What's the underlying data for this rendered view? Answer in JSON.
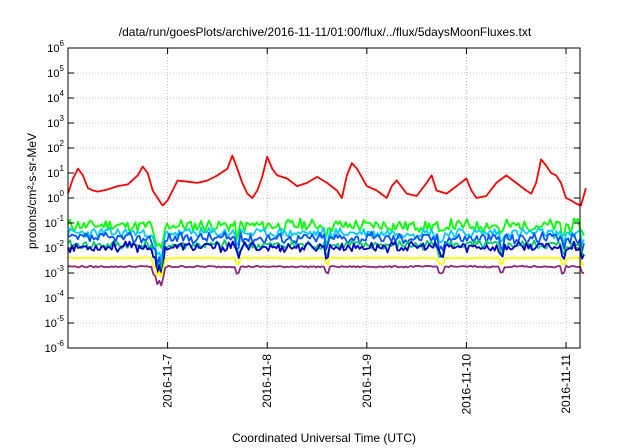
{
  "chart_data": {
    "type": "line",
    "title": "/data/run/goesPlots/archive/2016-11-11/01:00/flux/../flux/5daysMoonFluxes.txt",
    "xlabel": "Coordinated Universal Time (UTC)",
    "ylabel": "protons/cm²-s-sr-MeV",
    "y_scale": "log",
    "ylim": [
      1e-06,
      1000000.0
    ],
    "x_range_days": [
      "2016-11-06",
      "2016-11-11"
    ],
    "x_ticks": [
      {
        "value": "2016-11-07",
        "label": "2016-11-7"
      },
      {
        "value": "2016-11-08",
        "label": "2016-11-8"
      },
      {
        "value": "2016-11-09",
        "label": "2016-11-9"
      },
      {
        "value": "2016-11-10",
        "label": "2016-11-10"
      },
      {
        "value": "2016-11-11",
        "label": "2016-11-11"
      }
    ],
    "y_ticks": [
      {
        "exp": -6,
        "label": "10",
        "sup": "-6"
      },
      {
        "exp": -5,
        "label": "10",
        "sup": "-5"
      },
      {
        "exp": -4,
        "label": "10",
        "sup": "-4"
      },
      {
        "exp": -3,
        "label": "10",
        "sup": "-3"
      },
      {
        "exp": -2,
        "label": "10",
        "sup": "-2"
      },
      {
        "exp": -1,
        "label": "10",
        "sup": "-1"
      },
      {
        "exp": 0,
        "label": "10",
        "sup": "0"
      },
      {
        "exp": 1,
        "label": "10",
        "sup": "1"
      },
      {
        "exp": 2,
        "label": "10",
        "sup": "2"
      },
      {
        "exp": 3,
        "label": "10",
        "sup": "3"
      },
      {
        "exp": 4,
        "label": "10",
        "sup": "4"
      },
      {
        "exp": 5,
        "label": "10",
        "sup": "5"
      },
      {
        "exp": 6,
        "label": "10",
        "sup": "6"
      }
    ],
    "grid": true,
    "legend": "none",
    "series": [
      {
        "color": "#ff0000",
        "x_days": [
          0,
          0.05,
          0.1,
          0.15,
          0.2,
          0.25,
          0.3,
          0.4,
          0.5,
          0.6,
          0.7,
          0.75,
          0.8,
          0.85,
          0.9,
          0.95,
          1.0,
          1.05,
          1.1,
          1.2,
          1.3,
          1.4,
          1.5,
          1.6,
          1.65,
          1.7,
          1.75,
          1.8,
          1.85,
          1.9,
          1.95,
          2.0,
          2.05,
          2.1,
          2.15,
          2.2,
          2.3,
          2.4,
          2.5,
          2.6,
          2.7,
          2.75,
          2.8,
          2.85,
          2.9,
          3.0,
          3.1,
          3.2,
          3.25,
          3.3,
          3.4,
          3.5,
          3.6,
          3.65,
          3.7,
          3.8,
          3.9,
          4.0,
          4.05,
          4.1,
          4.2,
          4.3,
          4.4,
          4.5,
          4.6,
          4.65,
          4.7,
          4.75,
          4.8,
          4.85,
          4.9,
          4.95,
          5.0,
          5.05,
          5.1,
          5.15,
          5.2
        ],
        "values": [
          1.5,
          6,
          15,
          8,
          2.5,
          2,
          1.8,
          2.2,
          3,
          3.5,
          8,
          18,
          10,
          2,
          1,
          0.5,
          0.8,
          2,
          5,
          4.5,
          4,
          5,
          8,
          15,
          50,
          15,
          4,
          1.5,
          1,
          2,
          7,
          45,
          15,
          8,
          7,
          6,
          3,
          4,
          7,
          4,
          2,
          1,
          8,
          25,
          15,
          3,
          2,
          1,
          3,
          5,
          1.5,
          1.2,
          4,
          8,
          2,
          1.5,
          3,
          6,
          2,
          1,
          1.2,
          4,
          8,
          4,
          2,
          1.5,
          4,
          35,
          20,
          10,
          8,
          4,
          1,
          0.8,
          0.6,
          0.5,
          2.5
        ]
      },
      {
        "color": "#00ff00",
        "base": 0.08,
        "amp": 0.28,
        "seed": 11
      },
      {
        "color": "#00ccff",
        "base": 0.04,
        "amp": 0.22,
        "seed": 23
      },
      {
        "color": "#0055ff",
        "base": 0.025,
        "amp": 0.25,
        "seed": 37
      },
      {
        "color": "#00cc66",
        "base": 0.013,
        "amp": 0.2,
        "seed": 41
      },
      {
        "color": "#0000cc",
        "base": 0.011,
        "amp": 0.22,
        "seed": 53
      },
      {
        "color": "#ffff00",
        "base": 0.004,
        "amp": 0.03,
        "seed": 67
      },
      {
        "color": "#8b2a7a",
        "base": 0.0018,
        "amp": 0.04,
        "seed": 79
      }
    ]
  }
}
